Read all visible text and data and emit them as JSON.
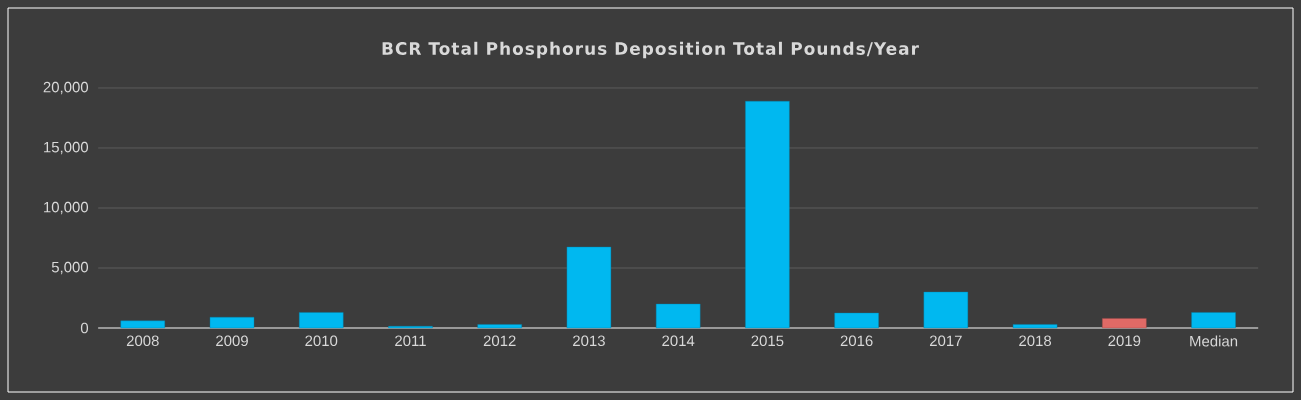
{
  "chart_data": {
    "type": "bar",
    "title": "BCR Total Phosphorus Deposition Total Pounds/Year",
    "categories": [
      "2008",
      "2009",
      "2010",
      "2011",
      "2012",
      "2013",
      "2014",
      "2015",
      "2016",
      "2017",
      "2018",
      "2019",
      "Median"
    ],
    "values": [
      600,
      900,
      1300,
      150,
      300,
      6750,
      2000,
      18900,
      1250,
      3000,
      300,
      800,
      1300
    ],
    "colors": [
      "#00b8f0",
      "#00b8f0",
      "#00b8f0",
      "#00b8f0",
      "#00b8f0",
      "#00b8f0",
      "#00b8f0",
      "#00b8f0",
      "#00b8f0",
      "#00b8f0",
      "#00b8f0",
      "#e06a66",
      "#00b8f0"
    ],
    "ylim": [
      0,
      20000
    ],
    "yticks": [
      {
        "value": 0,
        "label": "0"
      },
      {
        "value": 5000,
        "label": "5,000"
      },
      {
        "value": 10000,
        "label": "10,000"
      },
      {
        "value": 15000,
        "label": "15,000"
      },
      {
        "value": 20000,
        "label": "20,000"
      }
    ],
    "grid": "y"
  }
}
